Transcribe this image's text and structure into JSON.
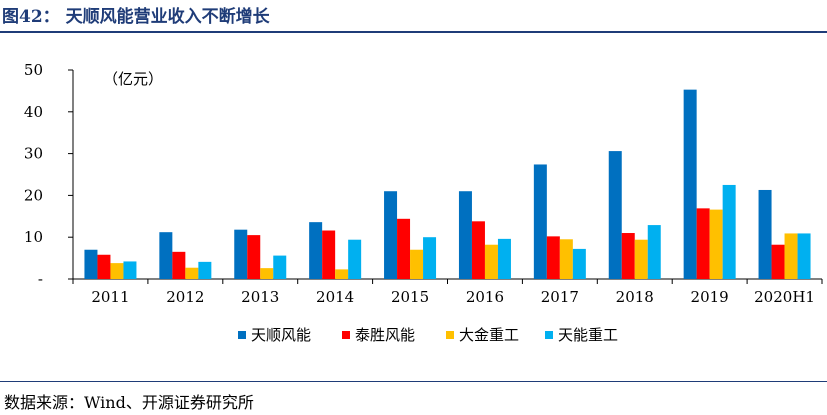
{
  "figure": {
    "title": "图42：  天顺风能营业收入不断增长",
    "source": "数据来源：Wind、开源证券研究所"
  },
  "chart_data": {
    "type": "bar",
    "title": "",
    "unit_label": "（亿元）",
    "xlabel": "",
    "ylabel": "",
    "ylim": [
      0,
      50
    ],
    "y_ticks": [
      0,
      10,
      20,
      30,
      40,
      50
    ],
    "y_tick_labels": [
      "-",
      "10",
      "20",
      "30",
      "40",
      "50"
    ],
    "grid": false,
    "legend_position": "bottom",
    "categories": [
      "2011",
      "2012",
      "2013",
      "2014",
      "2015",
      "2016",
      "2017",
      "2018",
      "2019",
      "2020H1"
    ],
    "series": [
      {
        "name": "天顺风能",
        "color": "#0070c0",
        "values": [
          7.0,
          11.2,
          11.8,
          13.6,
          21.0,
          21.0,
          27.4,
          30.6,
          45.3,
          21.3
        ]
      },
      {
        "name": "泰胜风能",
        "color": "#ff0000",
        "values": [
          5.8,
          6.5,
          10.5,
          11.6,
          14.4,
          13.8,
          10.2,
          11.0,
          16.9,
          8.2
        ]
      },
      {
        "name": "大金重工",
        "color": "#ffc000",
        "values": [
          3.8,
          2.7,
          2.6,
          2.3,
          7.0,
          8.2,
          9.5,
          9.4,
          16.6,
          10.9
        ]
      },
      {
        "name": "天能重工",
        "color": "#00b0f0",
        "values": [
          4.2,
          4.1,
          5.6,
          9.4,
          10.0,
          9.6,
          7.2,
          12.9,
          22.5,
          10.9
        ]
      }
    ]
  }
}
